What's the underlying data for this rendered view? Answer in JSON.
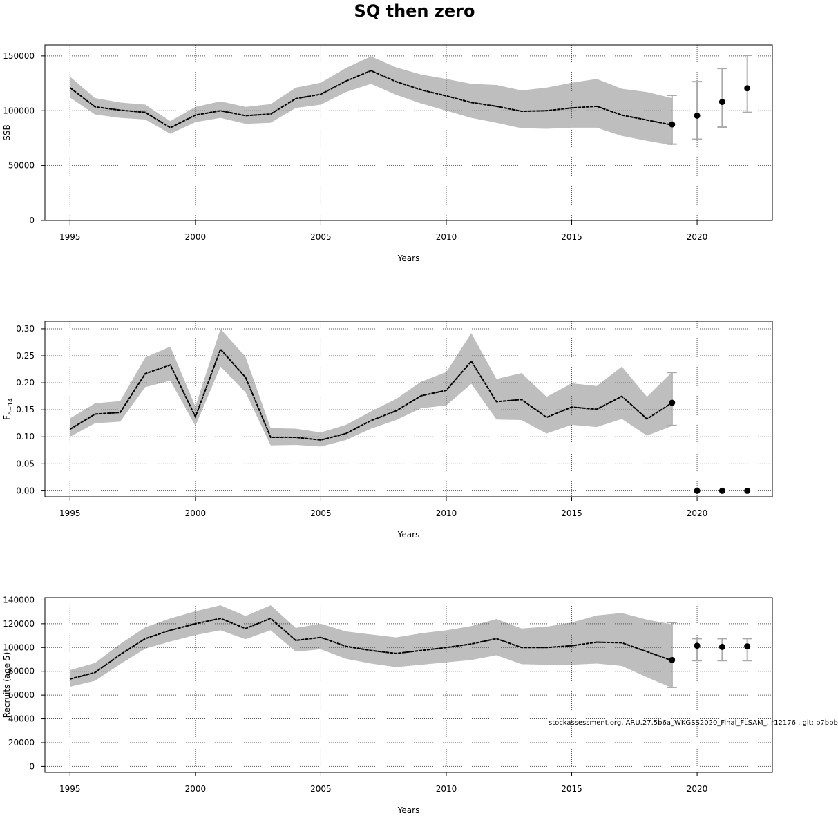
{
  "title": "SQ then zero",
  "footnote": "stockassessment.org, ARU.27.5b6a_WKGSS2020_Final_FLSAM_, r12176 , git: b7bbb",
  "colors": {
    "band": "#bebebe",
    "line": "#000000",
    "grid": "#555555",
    "errorbar": "#aaaaaa"
  },
  "chart_data": [
    {
      "type": "line",
      "ylabel": "SSB",
      "xlabel": "Years",
      "xlim": [
        1994,
        2023
      ],
      "ylim": [
        0,
        160000
      ],
      "xticks": [
        1995,
        2000,
        2005,
        2010,
        2015,
        2020
      ],
      "yticks": [
        0,
        50000,
        100000,
        150000
      ],
      "ytick_labels": [
        "0",
        "50000",
        "100000",
        "150000"
      ],
      "grid": true,
      "years": [
        1995,
        1996,
        1997,
        1998,
        1999,
        2000,
        2001,
        2002,
        2003,
        2004,
        2005,
        2006,
        2007,
        2008,
        2009,
        2010,
        2011,
        2012,
        2013,
        2014,
        2015,
        2016,
        2017,
        2018,
        2019
      ],
      "estimate": [
        121000,
        103500,
        100500,
        98500,
        84500,
        96000,
        100000,
        95500,
        97000,
        111000,
        115000,
        127000,
        136500,
        126500,
        119000,
        113500,
        107500,
        104000,
        99500,
        100000,
        102500,
        104000,
        96000,
        91500,
        87000
      ],
      "lower": [
        112000,
        96500,
        93500,
        92000,
        79000,
        89500,
        93500,
        88000,
        89000,
        102500,
        105500,
        117000,
        124500,
        114500,
        106500,
        100000,
        93500,
        89000,
        84000,
        83500,
        84500,
        84500,
        77000,
        72500,
        68500
      ],
      "upper": [
        131000,
        111500,
        107500,
        105500,
        90500,
        103500,
        108500,
        103500,
        106000,
        121000,
        125500,
        139000,
        149500,
        139500,
        133000,
        129000,
        124500,
        123500,
        118500,
        121000,
        125500,
        129000,
        120000,
        117000,
        111500
      ],
      "forecast": [
        {
          "year": 2019,
          "value": 87500,
          "low": 69500,
          "high": 114000
        },
        {
          "year": 2020,
          "value": 95500,
          "low": 74000,
          "high": 126500
        },
        {
          "year": 2021,
          "value": 108000,
          "low": 85000,
          "high": 138500
        },
        {
          "year": 2022,
          "value": 120500,
          "low": 98500,
          "high": 150500
        }
      ]
    },
    {
      "type": "line",
      "ylabel": "F",
      "ylabel_sub": "6−14",
      "xlabel": "Years",
      "xlim": [
        1994,
        2023
      ],
      "ylim": [
        -0.011,
        0.314
      ],
      "xticks": [
        1995,
        2000,
        2005,
        2010,
        2015,
        2020
      ],
      "yticks": [
        0,
        0.05,
        0.1,
        0.15,
        0.2,
        0.25,
        0.3
      ],
      "ytick_labels": [
        "0.00",
        "0.05",
        "0.10",
        "0.15",
        "0.20",
        "0.25",
        "0.30"
      ],
      "grid": true,
      "years": [
        1995,
        1996,
        1997,
        1998,
        1999,
        2000,
        2001,
        2002,
        2003,
        2004,
        2005,
        2006,
        2007,
        2008,
        2009,
        2010,
        2011,
        2012,
        2013,
        2014,
        2015,
        2016,
        2017,
        2018,
        2019
      ],
      "estimate": [
        0.114,
        0.142,
        0.145,
        0.217,
        0.233,
        0.137,
        0.262,
        0.21,
        0.099,
        0.099,
        0.094,
        0.106,
        0.13,
        0.148,
        0.176,
        0.186,
        0.24,
        0.165,
        0.169,
        0.136,
        0.155,
        0.151,
        0.175,
        0.133,
        0.163
      ],
      "lower": [
        0.1,
        0.125,
        0.128,
        0.192,
        0.204,
        0.12,
        0.23,
        0.182,
        0.084,
        0.085,
        0.082,
        0.094,
        0.115,
        0.131,
        0.153,
        0.158,
        0.198,
        0.132,
        0.131,
        0.106,
        0.122,
        0.118,
        0.133,
        0.102,
        0.12
      ],
      "upper": [
        0.134,
        0.162,
        0.166,
        0.247,
        0.267,
        0.156,
        0.3,
        0.248,
        0.116,
        0.115,
        0.108,
        0.122,
        0.147,
        0.17,
        0.202,
        0.22,
        0.292,
        0.207,
        0.218,
        0.174,
        0.199,
        0.194,
        0.23,
        0.174,
        0.22
      ],
      "forecast": [
        {
          "year": 2019,
          "value": 0.163,
          "low": 0.121,
          "high": 0.219
        },
        {
          "year": 2020,
          "value": 0.0
        },
        {
          "year": 2021,
          "value": 0.0
        },
        {
          "year": 2022,
          "value": 0.0
        }
      ]
    },
    {
      "type": "line",
      "ylabel": "Recruits (age 5)",
      "xlabel": "Years",
      "xlim": [
        1994,
        2023
      ],
      "ylim": [
        -5000,
        142000
      ],
      "xticks": [
        1995,
        2000,
        2005,
        2010,
        2015,
        2020
      ],
      "yticks": [
        0,
        20000,
        40000,
        60000,
        80000,
        100000,
        120000,
        140000
      ],
      "ytick_labels": [
        "0",
        "20000",
        "40000",
        "60000",
        "80000",
        "100000",
        "120000",
        "140000"
      ],
      "grid": true,
      "years": [
        1995,
        1996,
        1997,
        1998,
        1999,
        2000,
        2001,
        2002,
        2003,
        2004,
        2005,
        2006,
        2007,
        2008,
        2009,
        2010,
        2011,
        2012,
        2013,
        2014,
        2015,
        2016,
        2017,
        2018,
        2019
      ],
      "estimate": [
        73500,
        79000,
        94000,
        107500,
        114500,
        120000,
        124500,
        116000,
        124500,
        106000,
        108500,
        101000,
        97500,
        95000,
        97500,
        100000,
        103000,
        107500,
        100000,
        100000,
        101500,
        104500,
        104000,
        96500,
        89000
      ],
      "lower": [
        67000,
        72000,
        86000,
        99000,
        105000,
        110500,
        114500,
        107000,
        114500,
        96500,
        98500,
        90500,
        86500,
        83500,
        85500,
        87500,
        89500,
        93500,
        86000,
        85500,
        85500,
        86500,
        84500,
        75000,
        66000
      ],
      "upper": [
        81000,
        87000,
        103000,
        117000,
        124500,
        130500,
        135500,
        126500,
        135500,
        116500,
        120000,
        113500,
        111000,
        108500,
        112000,
        114500,
        118000,
        124000,
        116000,
        117500,
        121000,
        127000,
        129000,
        123500,
        119500
      ],
      "forecast": [
        {
          "year": 2019,
          "value": 89500,
          "low": 66500,
          "high": 121000
        },
        {
          "year": 2020,
          "value": 101500,
          "low": 89000,
          "high": 107500
        },
        {
          "year": 2021,
          "value": 100500,
          "low": 89000,
          "high": 107500
        },
        {
          "year": 2022,
          "value": 101000,
          "low": 89000,
          "high": 107500
        }
      ]
    }
  ]
}
